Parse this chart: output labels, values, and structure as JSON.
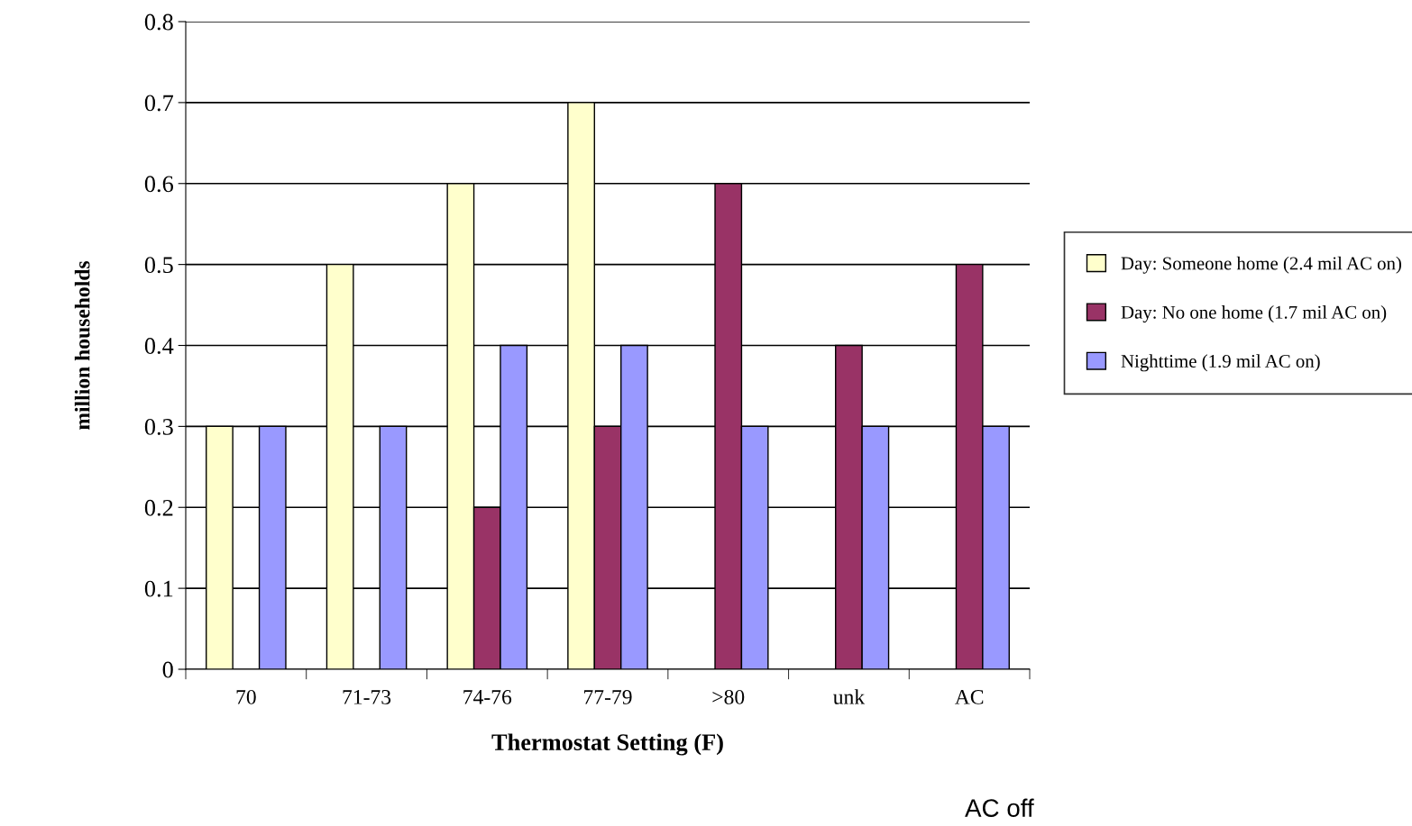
{
  "chart_data": {
    "type": "bar",
    "xlabel": "Thermostat Setting (F)",
    "ylabel": "million households",
    "categories": [
      "70",
      "71-73",
      "74-76",
      "77-79",
      ">80",
      "unk",
      "AC"
    ],
    "series": [
      {
        "name": "Day: Someone home (2.4 mil AC on)",
        "color": "#ffffcc",
        "values": [
          0.3,
          0.5,
          0.6,
          0.7,
          null,
          null,
          null
        ]
      },
      {
        "name": "Day: No one home (1.7 mil AC on)",
        "color": "#993366",
        "values": [
          null,
          null,
          0.2,
          0.3,
          0.6,
          0.4,
          0.5
        ]
      },
      {
        "name": "Nighttime (1.9 mil AC on)",
        "color": "#9999ff",
        "values": [
          0.3,
          0.3,
          0.4,
          0.4,
          0.3,
          0.3,
          0.3
        ]
      }
    ],
    "ylim": [
      0,
      0.8
    ],
    "yticks": [
      0,
      0.1,
      0.2,
      0.3,
      0.4,
      0.5,
      0.6,
      0.7,
      0.8
    ],
    "grid": "y",
    "legend": "right",
    "annotations": [
      "AC off"
    ]
  }
}
